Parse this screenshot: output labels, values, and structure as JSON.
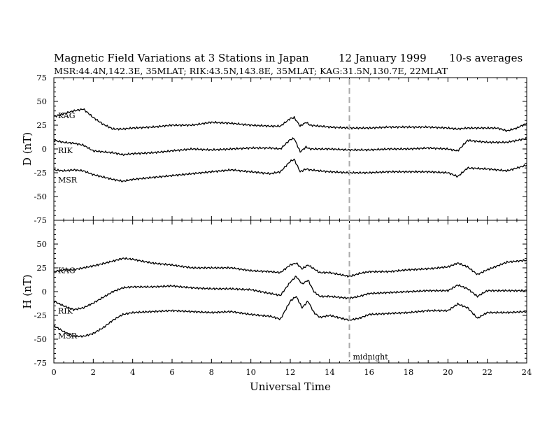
{
  "header": {
    "title": "Magnetic Field Variations at 3 Stations in Japan",
    "date": "12 January 1999",
    "averaging": "10-s averages",
    "stations_line": "MSR:44.4N,142.3E, 35MLAT;   RIK:43.5N,143.8E, 35MLAT;   KAG:31.5N,130.7E, 22MLAT"
  },
  "annotation": {
    "midnight_label": "midnight",
    "midnight_ut": 15
  },
  "chart_data": [
    {
      "type": "line",
      "panel": "top",
      "ylabel": "D (nT)",
      "xlabel": "",
      "ylim": [
        -75,
        75
      ],
      "yticks": [
        -75,
        -50,
        -25,
        0,
        25,
        50,
        75
      ],
      "xlim": [
        0,
        24
      ],
      "xticks": [
        0,
        2,
        4,
        6,
        8,
        10,
        12,
        14,
        16,
        18,
        20,
        22,
        24
      ],
      "series": [
        {
          "name": "KAG",
          "x": [
            0,
            0.5,
            1,
            1.5,
            2,
            2.5,
            3,
            3.5,
            4,
            5,
            6,
            7,
            8,
            9,
            10,
            11,
            11.5,
            12,
            12.2,
            12.5,
            12.8,
            13,
            13.5,
            14,
            15,
            16,
            17,
            18,
            19,
            20,
            20.5,
            21,
            22,
            22.5,
            23,
            23.5,
            24
          ],
          "y": [
            34,
            37,
            40,
            42,
            33,
            26,
            21,
            21,
            22,
            23,
            25,
            25,
            28,
            27,
            25,
            24,
            24,
            32,
            33,
            24,
            28,
            25,
            24,
            23,
            22,
            22,
            23,
            23,
            23,
            22,
            21,
            22,
            22,
            22,
            19,
            22,
            27
          ]
        },
        {
          "name": "RIK",
          "x": [
            0,
            0.5,
            1,
            1.5,
            2,
            3,
            3.5,
            4,
            5,
            6,
            7,
            8,
            9,
            10,
            11,
            11.5,
            12,
            12.2,
            12.5,
            12.8,
            13,
            14,
            15,
            16,
            17,
            18,
            19,
            20,
            20.5,
            21,
            22,
            23,
            24
          ],
          "y": [
            9,
            7,
            6,
            4,
            -2,
            -4,
            -6,
            -5,
            -4,
            -2,
            0,
            -1,
            0,
            1,
            1,
            0,
            10,
            11,
            -3,
            2,
            0,
            0,
            -1,
            -1,
            0,
            0,
            1,
            0,
            -2,
            9,
            7,
            7,
            11
          ]
        },
        {
          "name": "MSR",
          "x": [
            0,
            0.5,
            1,
            1.5,
            2,
            3,
            3.5,
            4,
            5,
            6,
            7,
            8,
            9,
            10,
            11,
            11.5,
            12,
            12.2,
            12.5,
            12.8,
            13,
            14,
            15,
            16,
            17,
            18,
            19,
            20,
            20.5,
            21,
            22,
            23,
            24
          ],
          "y": [
            -22,
            -23,
            -22,
            -23,
            -27,
            -32,
            -34,
            -32,
            -30,
            -28,
            -26,
            -24,
            -22,
            -24,
            -26,
            -24,
            -13,
            -11,
            -24,
            -21,
            -22,
            -24,
            -25,
            -25,
            -24,
            -24,
            -24,
            -25,
            -29,
            -20,
            -21,
            -23,
            -17
          ]
        }
      ]
    },
    {
      "type": "line",
      "panel": "bottom",
      "ylabel": "H (nT)",
      "xlabel": "Universal Time",
      "ylim": [
        -75,
        75
      ],
      "yticks": [
        -75,
        -50,
        -25,
        0,
        25,
        50,
        75
      ],
      "xlim": [
        0,
        24
      ],
      "xticks": [
        0,
        2,
        4,
        6,
        8,
        10,
        12,
        14,
        16,
        18,
        20,
        22,
        24
      ],
      "series": [
        {
          "name": "KAG",
          "x": [
            0,
            0.5,
            1,
            2,
            3,
            3.5,
            4,
            5,
            6,
            7,
            8,
            9,
            10,
            11,
            11.5,
            12,
            12.3,
            12.6,
            12.9,
            13.2,
            13.5,
            14,
            15,
            15.5,
            16,
            17,
            18,
            19,
            20,
            20.5,
            21,
            21.5,
            22,
            23,
            24
          ],
          "y": [
            21,
            23,
            23,
            27,
            32,
            35,
            34,
            30,
            28,
            25,
            25,
            25,
            22,
            21,
            20,
            28,
            30,
            24,
            28,
            24,
            20,
            20,
            16,
            19,
            21,
            21,
            23,
            24,
            26,
            30,
            26,
            18,
            23,
            31,
            33
          ]
        },
        {
          "name": "RIK",
          "x": [
            0,
            0.5,
            1,
            1.5,
            2,
            2.5,
            3,
            3.5,
            4,
            5,
            6,
            7,
            8,
            9,
            10,
            11,
            11.5,
            12,
            12.3,
            12.6,
            12.9,
            13.2,
            13.5,
            14,
            15,
            15.5,
            16,
            17,
            18,
            19,
            20,
            20.5,
            21,
            21.5,
            22,
            23,
            24
          ],
          "y": [
            -10,
            -15,
            -19,
            -17,
            -12,
            -6,
            0,
            4,
            5,
            5,
            6,
            4,
            3,
            3,
            2,
            -2,
            -4,
            10,
            16,
            8,
            12,
            0,
            -5,
            -5,
            -7,
            -5,
            -2,
            -1,
            0,
            1,
            1,
            7,
            3,
            -5,
            1,
            1,
            1
          ]
        },
        {
          "name": "MSR",
          "x": [
            0,
            0.5,
            1,
            1.5,
            2,
            2.5,
            3,
            3.5,
            4,
            5,
            6,
            7,
            8,
            9,
            10,
            11,
            11.5,
            12,
            12.3,
            12.6,
            12.9,
            13.2,
            13.5,
            14,
            15,
            15.5,
            16,
            17,
            18,
            19,
            20,
            20.5,
            21,
            21.5,
            22,
            23,
            24
          ],
          "y": [
            -36,
            -42,
            -47,
            -47,
            -44,
            -38,
            -30,
            -24,
            -22,
            -21,
            -20,
            -21,
            -22,
            -21,
            -24,
            -26,
            -29,
            -10,
            -5,
            -17,
            -10,
            -22,
            -27,
            -25,
            -30,
            -28,
            -24,
            -23,
            -22,
            -20,
            -20,
            -13,
            -17,
            -28,
            -22,
            -22,
            -21
          ]
        }
      ]
    }
  ]
}
